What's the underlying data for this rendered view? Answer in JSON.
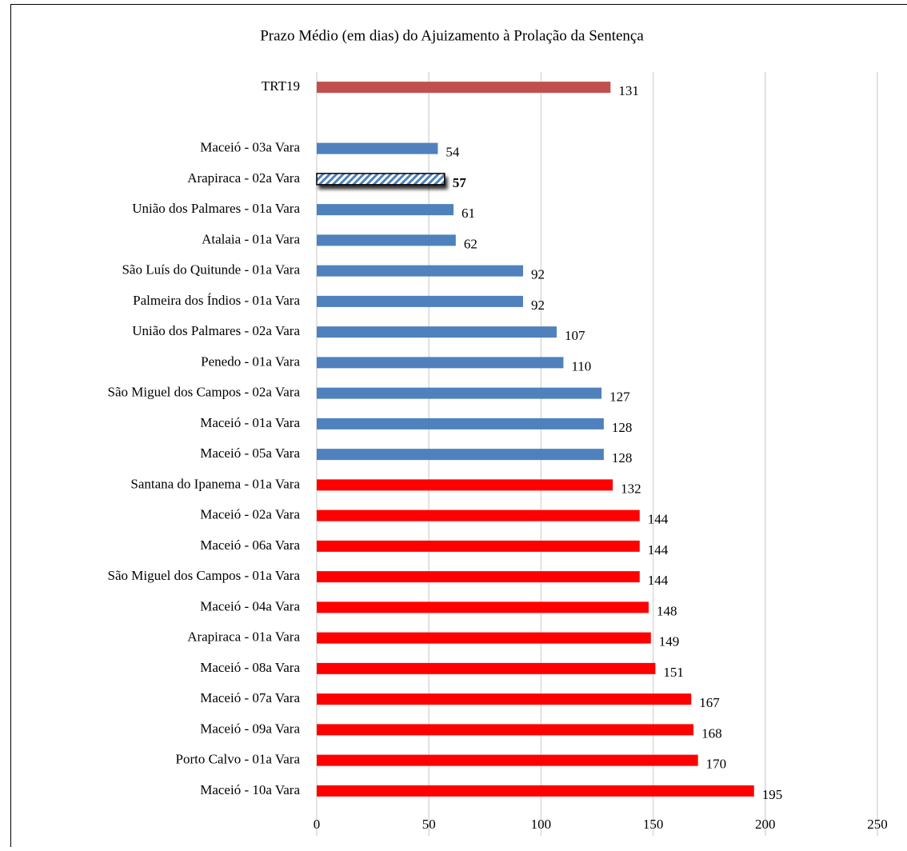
{
  "chart_data": {
    "type": "barh",
    "title": "Prazo Médio (em dias) do Ajuizamento à Prolação da Sentença",
    "categories": [
      "TRT19",
      null,
      "Maceió - 03a Vara",
      "Arapiraca - 02a Vara",
      "União dos Palmares - 01a Vara",
      "Atalaia - 01a Vara",
      "São Luís do Quitunde - 01a Vara",
      "Palmeira dos Índios - 01a Vara",
      "União dos Palmares - 02a Vara",
      "Penedo - 01a Vara",
      "São Miguel dos Campos - 02a Vara",
      "Maceió - 01a Vara",
      "Maceió - 05a Vara",
      "Santana do Ipanema - 01a Vara",
      "Maceió - 02a Vara",
      "Maceió - 06a Vara",
      "São Miguel dos Campos - 01a Vara",
      "Maceió - 04a Vara",
      "Arapiraca - 01a Vara",
      "Maceió - 08a Vara",
      "Maceió - 07a Vara",
      "Maceió - 09a Vara",
      "Porto Calvo - 01a Vara",
      "Maceió - 10a Vara"
    ],
    "values": [
      131,
      null,
      54,
      57,
      61,
      62,
      92,
      92,
      107,
      110,
      127,
      128,
      128,
      132,
      144,
      144,
      144,
      148,
      149,
      151,
      167,
      168,
      170,
      195
    ],
    "colors": [
      "#c0504d",
      null,
      "#4f81bd",
      "#4f81bd",
      "#4f81bd",
      "#4f81bd",
      "#4f81bd",
      "#4f81bd",
      "#4f81bd",
      "#4f81bd",
      "#4f81bd",
      "#4f81bd",
      "#4f81bd",
      "#ff0000",
      "#ff0000",
      "#ff0000",
      "#ff0000",
      "#ff0000",
      "#ff0000",
      "#ff0000",
      "#ff0000",
      "#ff0000",
      "#ff0000",
      "#ff0000"
    ],
    "highlighted": 3,
    "xlim": [
      0,
      250
    ],
    "xticks": [
      0,
      50,
      100,
      150,
      200,
      250
    ],
    "grid": true
  }
}
